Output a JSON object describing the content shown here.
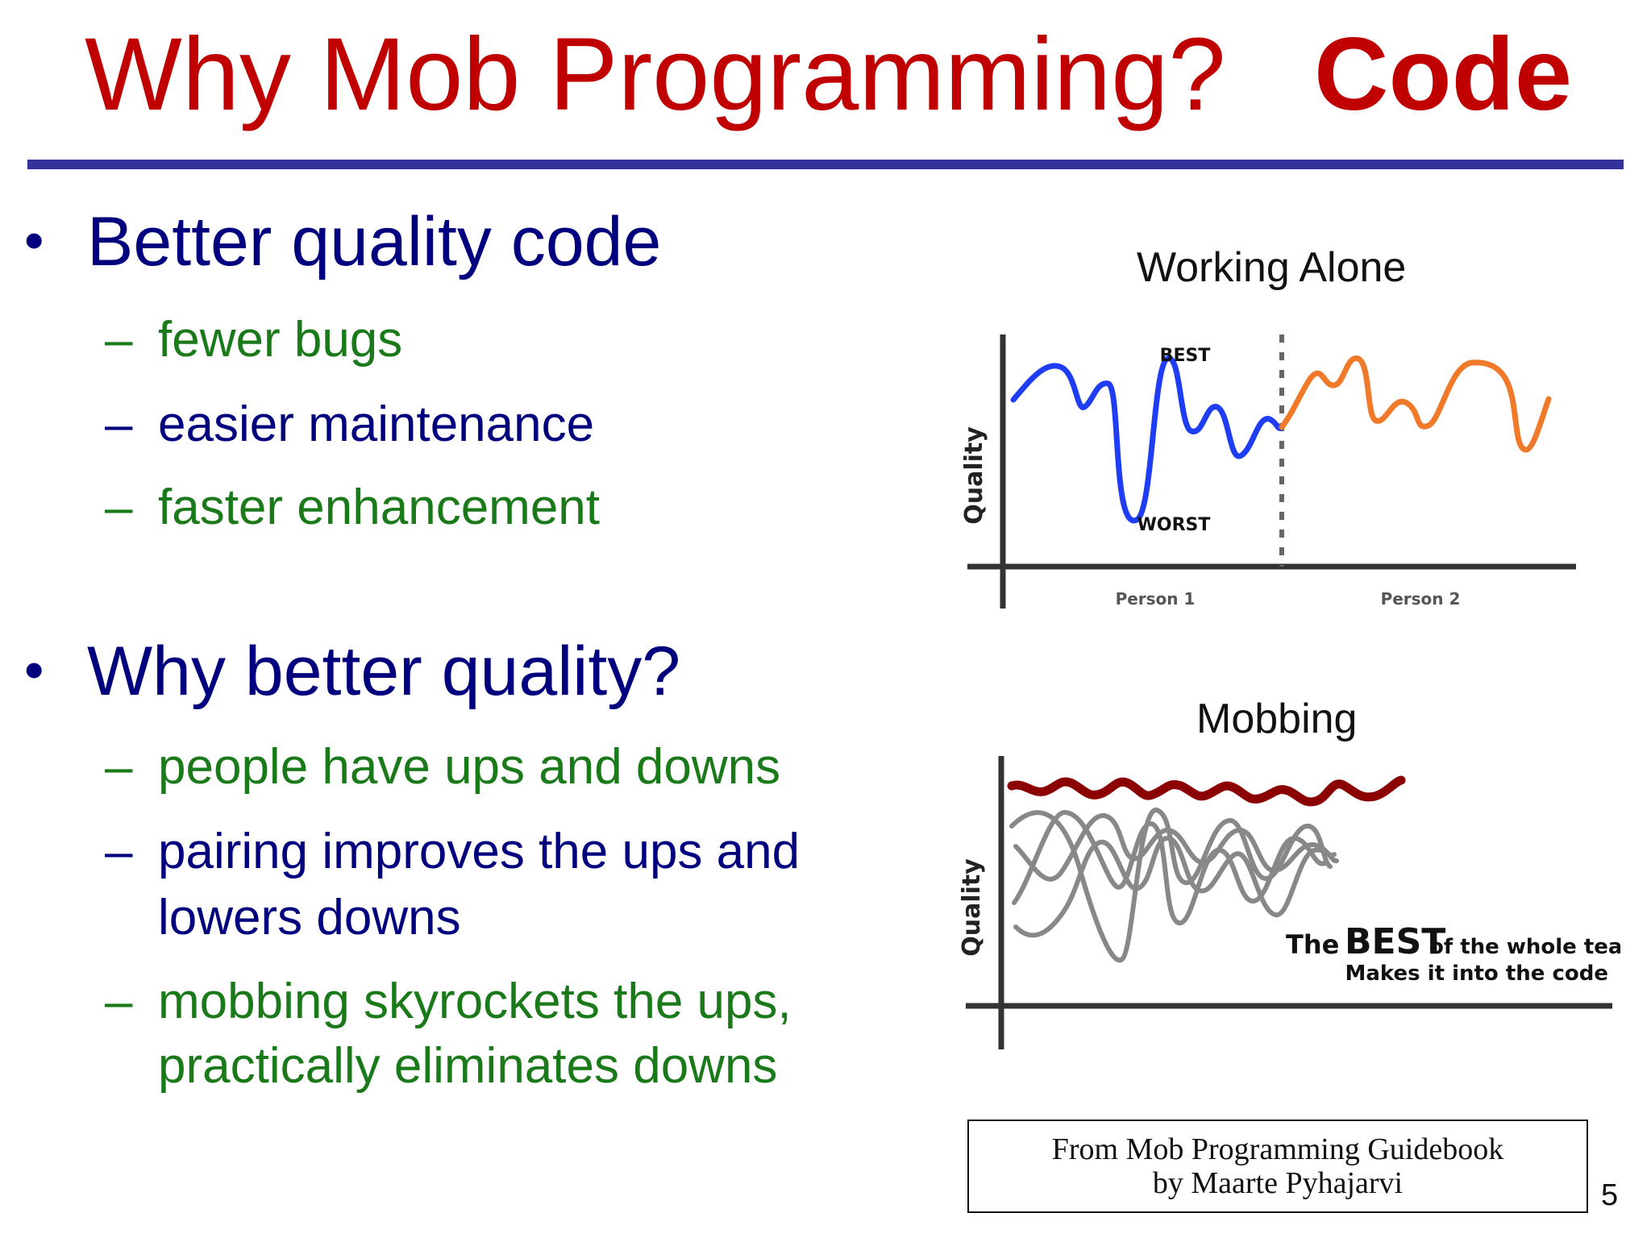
{
  "slide": {
    "title_main": "Why Mob Programming?",
    "title_topic": "Code",
    "page_number": "5"
  },
  "bullets": [
    {
      "text": "Better quality code",
      "subitems": [
        {
          "text": "fewer bugs",
          "color": "#1a7a1a"
        },
        {
          "text": "easier maintenance",
          "color": "#00007f"
        },
        {
          "text": "faster enhancement",
          "color": "#1a7a1a"
        }
      ]
    },
    {
      "text": "Why better quality?",
      "subitems": [
        {
          "text": "people have ups and downs",
          "color": "#1a7a1a"
        },
        {
          "text": "pairing improves the ups and",
          "cont": "lowers downs",
          "color": "#00007f"
        },
        {
          "text": "mobbing skyrockets the ups,",
          "cont": "practically eliminates downs",
          "color": "#1a7a1a"
        }
      ]
    }
  ],
  "figures": {
    "working_alone": {
      "title": "Working Alone",
      "y_axis_label": "Quality",
      "best_label": "BEST",
      "worst_label": "WORST",
      "person1_label": "Person 1",
      "person2_label": "Person 2",
      "person1_color": "#1f3df5",
      "person2_color": "#f07a2a"
    },
    "mobbing": {
      "title": "Mobbing",
      "y_axis_label": "Quality",
      "caption_the": "The",
      "caption_best": "BEST",
      "caption_rest": "of the whole team",
      "caption_line2": "Makes it into the code",
      "best_color": "#8b0000",
      "others_color": "#888888"
    }
  },
  "source": {
    "line1": "From Mob Programming Guidebook",
    "line2": "by Maarte Pyhajarvi"
  },
  "colors": {
    "title": "#c00000",
    "rule": "#33339a",
    "bullet_primary": "#00007f",
    "bullet_green": "#1a7a1a"
  }
}
